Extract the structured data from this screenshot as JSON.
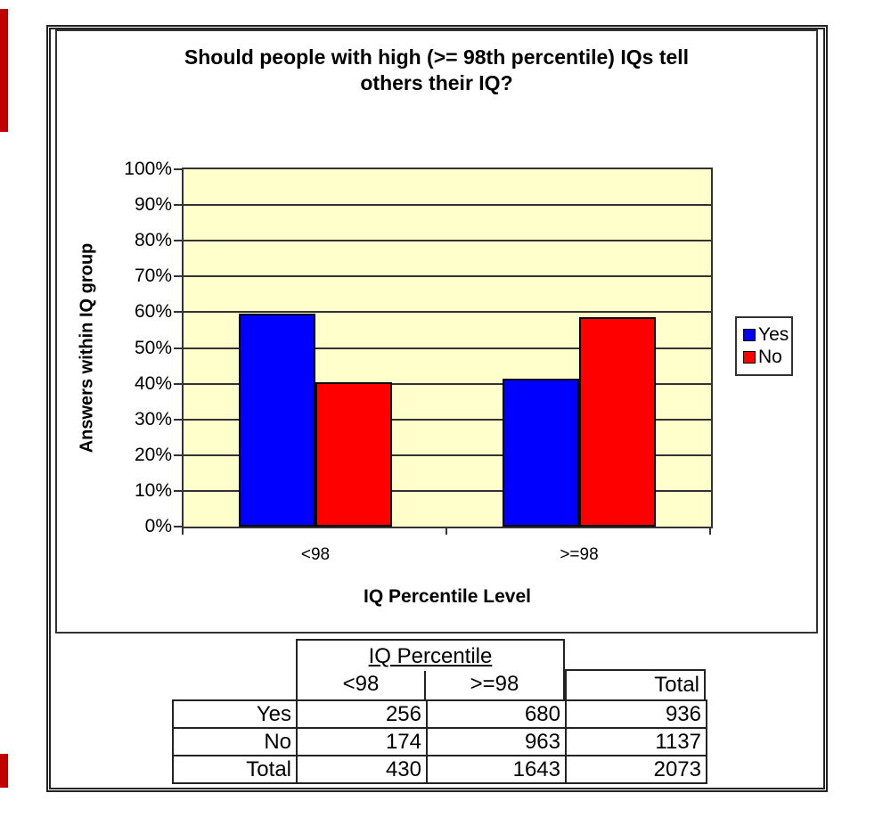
{
  "artifacts": {
    "edge_mark_color": "#c00000"
  },
  "chart": {
    "title_lines": [
      "Should people with high (>= 98th percentile) IQs tell",
      "others their IQ?"
    ],
    "plot_bg": "#ffffcc",
    "y_axis": {
      "title": "Answers within IQ group",
      "ticks": [
        "0%",
        "10%",
        "20%",
        "30%",
        "40%",
        "50%",
        "60%",
        "70%",
        "80%",
        "90%",
        "100%"
      ]
    },
    "x_axis": {
      "title": "IQ Percentile Level",
      "categories": [
        "<98",
        ">=98"
      ]
    },
    "legend": {
      "items": [
        {
          "label": "Yes",
          "color": "#0000ff"
        },
        {
          "label": "No",
          "color": "#ff0000"
        }
      ]
    }
  },
  "chart_data": {
    "type": "bar",
    "title": "Should people with high (>= 98th percentile) IQs tell others their IQ?",
    "categories": [
      "<98",
      ">=98"
    ],
    "series": [
      {
        "name": "Yes",
        "color": "#0000ff",
        "values": [
          59.5,
          41.4
        ]
      },
      {
        "name": "No",
        "color": "#ff0000",
        "values": [
          40.5,
          58.6
        ]
      }
    ],
    "xlabel": "IQ Percentile Level",
    "ylabel": "Answers within IQ group",
    "ylim": [
      0,
      100
    ],
    "ytick_step": 10,
    "ytick_format": "percent",
    "grid": true,
    "legend_position": "right",
    "plot_background": "#ffffcc"
  },
  "table": {
    "group_header": "IQ Percentile",
    "col_headers": [
      "<98",
      ">=98",
      "Total"
    ],
    "rows": [
      {
        "label": "Yes",
        "values": [
          256,
          680,
          936
        ]
      },
      {
        "label": "No",
        "values": [
          174,
          963,
          1137
        ]
      },
      {
        "label": "Total",
        "values": [
          430,
          1643,
          2073
        ]
      }
    ]
  }
}
